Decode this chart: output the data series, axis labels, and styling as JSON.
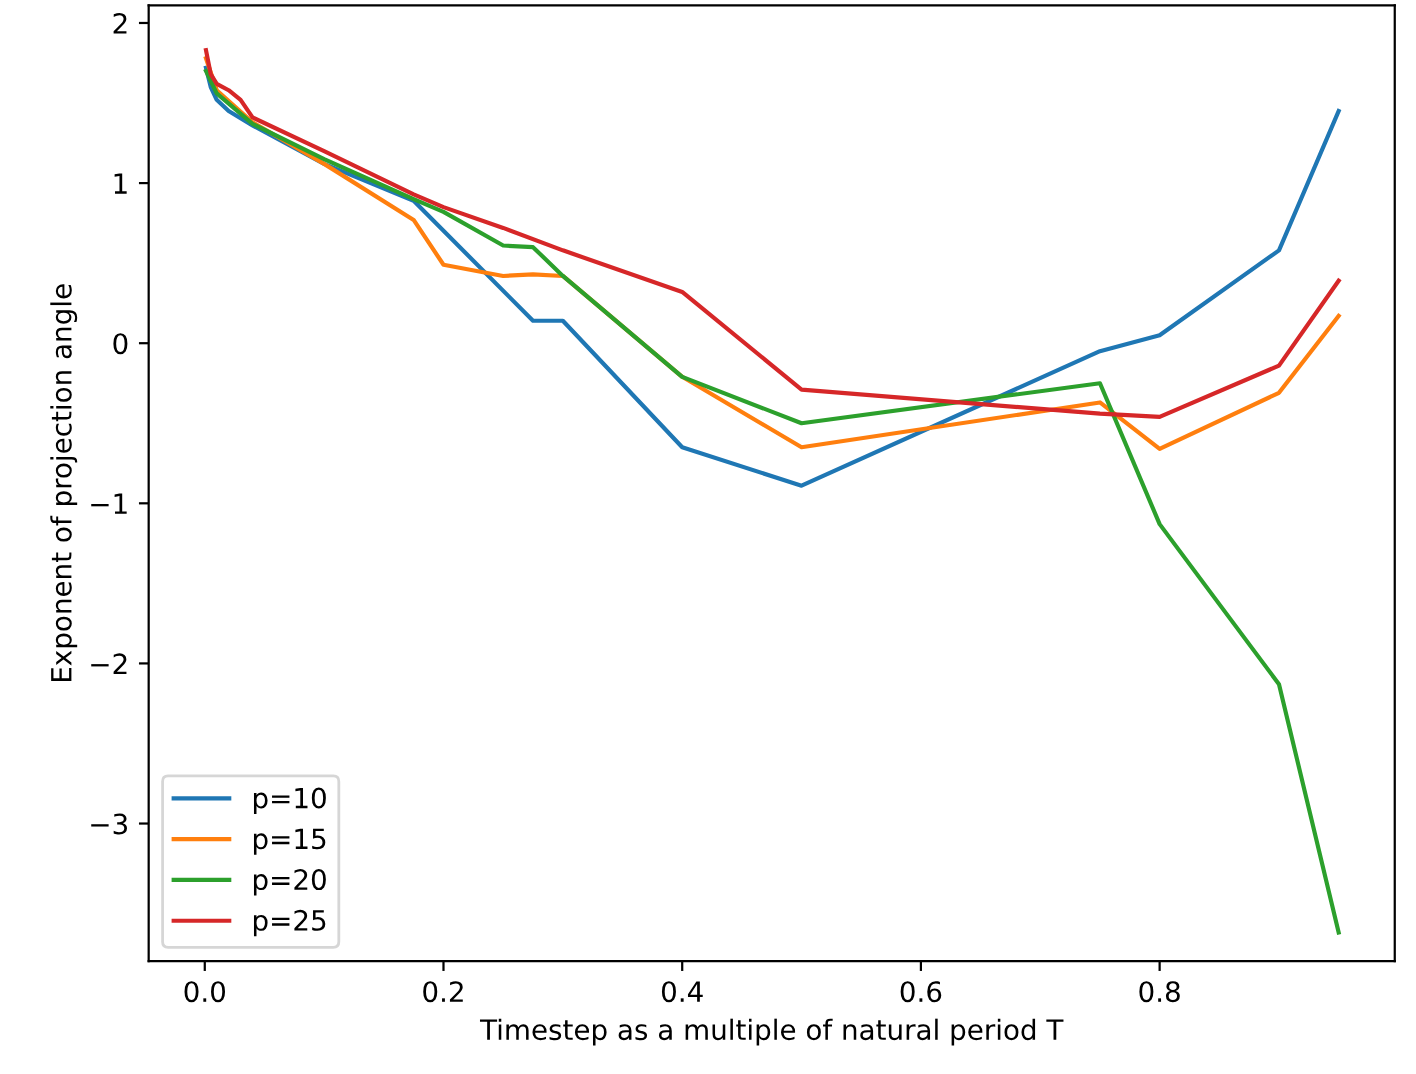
{
  "chart_data": {
    "type": "line",
    "xlabel": "Timestep as a multiple of natural period T",
    "ylabel": "Exponent of projection angle",
    "xlim": [
      -0.047,
      0.997
    ],
    "ylim": [
      -3.86,
      2.11
    ],
    "xticks": [
      {
        "value": 0,
        "label": "0.0"
      },
      0.2,
      0.4,
      0.6,
      0.8
    ],
    "yticks": [
      {
        "value": -3,
        "label": "−3"
      },
      {
        "value": -2,
        "label": "−2"
      },
      {
        "value": -1,
        "label": "−1"
      },
      0,
      1,
      2
    ],
    "grid": false,
    "legend": "bottom left",
    "series": [
      {
        "name": "p=10",
        "color": "#1f77b4",
        "x": [
          0.001,
          0.005,
          0.01,
          0.02,
          0.04,
          0.1,
          0.175,
          0.275,
          0.3,
          0.4,
          0.5,
          0.75,
          0.8,
          0.9,
          0.95
        ],
        "values": [
          1.72,
          1.6,
          1.52,
          1.45,
          1.36,
          1.12,
          0.89,
          0.14,
          0.14,
          -0.65,
          -0.89,
          -0.05,
          0.05,
          0.58,
          1.45
        ]
      },
      {
        "name": "p=15",
        "color": "#ff7f0e",
        "x": [
          0.001,
          0.01,
          0.04,
          0.1,
          0.175,
          0.2,
          0.25,
          0.275,
          0.3,
          0.4,
          0.5,
          0.75,
          0.8,
          0.9,
          0.95
        ],
        "values": [
          1.78,
          1.58,
          1.38,
          1.12,
          0.77,
          0.49,
          0.42,
          0.43,
          0.42,
          -0.21,
          -0.65,
          -0.37,
          -0.66,
          -0.31,
          0.17
        ]
      },
      {
        "name": "p=20",
        "color": "#2ca02c",
        "x": [
          0.001,
          0.01,
          0.04,
          0.1,
          0.175,
          0.2,
          0.25,
          0.275,
          0.3,
          0.4,
          0.5,
          0.75,
          0.8,
          0.9,
          0.95
        ],
        "values": [
          1.7,
          1.56,
          1.37,
          1.15,
          0.9,
          0.82,
          0.61,
          0.6,
          0.42,
          -0.21,
          -0.5,
          -0.25,
          -1.13,
          -2.13,
          -3.68
        ]
      },
      {
        "name": "p=25",
        "color": "#d62728",
        "x": [
          0.001,
          0.005,
          0.01,
          0.02,
          0.03,
          0.04,
          0.1,
          0.175,
          0.2,
          0.25,
          0.3,
          0.4,
          0.5,
          0.75,
          0.8,
          0.9,
          0.95
        ],
        "values": [
          1.83,
          1.68,
          1.62,
          1.58,
          1.52,
          1.41,
          1.2,
          0.93,
          0.85,
          0.72,
          0.58,
          0.32,
          -0.29,
          -0.44,
          -0.46,
          -0.14,
          0.39
        ]
      }
    ]
  }
}
